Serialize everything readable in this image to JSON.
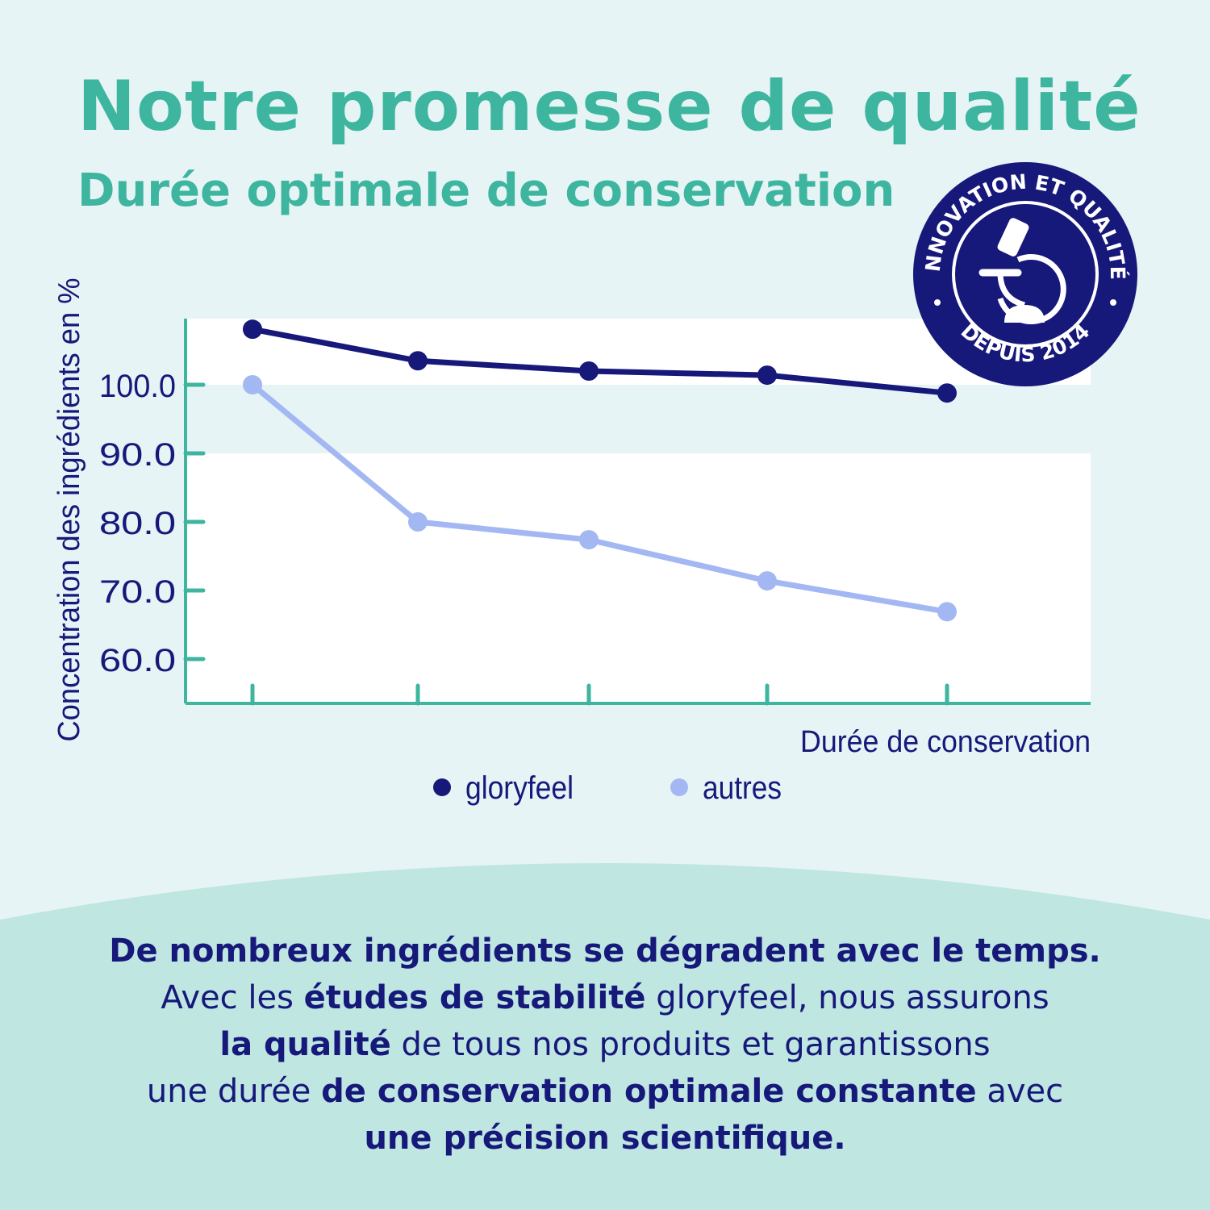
{
  "header": {
    "title": "Notre promesse de qualité",
    "subtitle": "Durée optimale de conservation"
  },
  "badge": {
    "top_text": "INNOVATION ET QUALITÉ",
    "bottom_text": "DEPUIS 2014",
    "icon": "microscope-icon"
  },
  "chart_data": {
    "type": "line",
    "title": "",
    "ylabel": "Concentration des ingrédients en %",
    "xlabel": "Durée de conservation",
    "ylim": [
      55,
      110
    ],
    "yticks": [
      "100.0",
      "90.0",
      "80.0",
      "70.0",
      "60.0"
    ],
    "ytick_values": [
      100,
      90,
      80,
      70,
      60
    ],
    "x": [
      1,
      2,
      3,
      4,
      5
    ],
    "legend_position": "bottom",
    "series": [
      {
        "name": "gloryfeel",
        "color": "#16187a",
        "values": [
          108.1,
          103.5,
          102.0,
          101.4,
          98.8
        ]
      },
      {
        "name": "autres",
        "color": "#a3b8f2",
        "values": [
          100.0,
          80.0,
          77.4,
          71.4,
          66.9
        ]
      }
    ]
  },
  "colors": {
    "background": "#e6f4f5",
    "accent": "#3db59f",
    "navy": "#16187a",
    "bottom_panel": "#bfe6e1"
  },
  "bottom": {
    "lines": [
      [
        {
          "t": "De nombreux ingrédients se dégradent avec le temps.",
          "b": true
        }
      ],
      [
        {
          "t": "Avec les ",
          "b": false
        },
        {
          "t": "études de stabilité",
          "b": true
        },
        {
          "t": " gloryfeel, nous assurons",
          "b": false
        }
      ],
      [
        {
          "t": "la qualité",
          "b": true
        },
        {
          "t": " de tous nos produits et garantissons",
          "b": false
        }
      ],
      [
        {
          "t": "une durée ",
          "b": false
        },
        {
          "t": "de conservation optimale constante",
          "b": true
        },
        {
          "t": " avec",
          "b": false
        }
      ],
      [
        {
          "t": "une précision scientifique.",
          "b": true
        }
      ]
    ]
  }
}
